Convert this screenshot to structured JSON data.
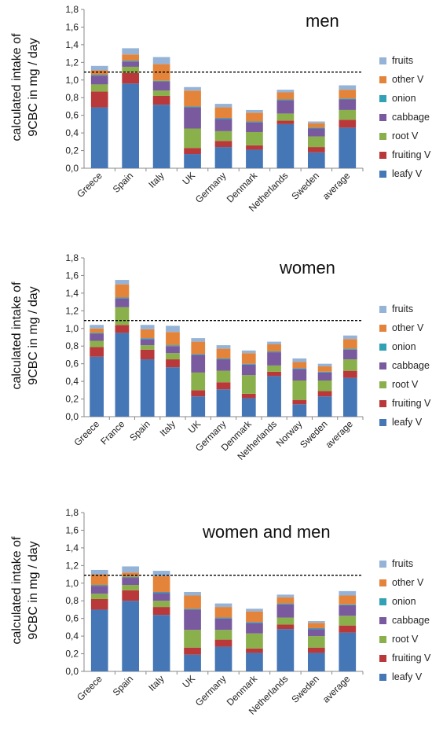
{
  "legend": [
    {
      "name": "fruits",
      "color": "#95b3d7"
    },
    {
      "name": "other V",
      "color": "#e3843a"
    },
    {
      "name": "onion",
      "color": "#31a1b5"
    },
    {
      "name": "cabbage",
      "color": "#7a5a9e"
    },
    {
      "name": "root V",
      "color": "#8ab04b"
    },
    {
      "name": "fruiting V",
      "color": "#b9393a"
    },
    {
      "name": "leafy V",
      "color": "#4576b5"
    }
  ],
  "chart_data": [
    {
      "type": "bar",
      "stacked": true,
      "title": "men",
      "ylabel": [
        "calculated intake of",
        "9CBC  in mg / day"
      ],
      "ylim": [
        0,
        1.8
      ],
      "yticks": [
        "0,0",
        "0,2",
        "0,4",
        "0,6",
        "0,8",
        "1,0",
        "1,2",
        "1,4",
        "1,6",
        "1,8"
      ],
      "reference_line": 1.09,
      "categories": [
        "Greece",
        "Spain",
        "Italy",
        "UK",
        "Germany",
        "Denmark",
        "Netherlands",
        "Sweden",
        "average"
      ],
      "series": [
        {
          "name": "leafy V",
          "values": [
            0.69,
            0.96,
            0.72,
            0.16,
            0.24,
            0.21,
            0.5,
            0.18,
            0.46
          ]
        },
        {
          "name": "fruiting V",
          "values": [
            0.18,
            0.12,
            0.1,
            0.07,
            0.07,
            0.05,
            0.04,
            0.06,
            0.09
          ]
        },
        {
          "name": "root V",
          "values": [
            0.08,
            0.07,
            0.06,
            0.22,
            0.11,
            0.15,
            0.08,
            0.12,
            0.11
          ]
        },
        {
          "name": "cabbage",
          "values": [
            0.1,
            0.06,
            0.1,
            0.24,
            0.14,
            0.11,
            0.15,
            0.09,
            0.12
          ]
        },
        {
          "name": "onion",
          "values": [
            0.01,
            0.01,
            0.01,
            0.01,
            0.01,
            0.01,
            0.01,
            0.01,
            0.01
          ]
        },
        {
          "name": "other V",
          "values": [
            0.05,
            0.07,
            0.19,
            0.18,
            0.12,
            0.1,
            0.08,
            0.05,
            0.1
          ]
        },
        {
          "name": "fruits",
          "values": [
            0.05,
            0.07,
            0.08,
            0.04,
            0.04,
            0.03,
            0.03,
            0.02,
            0.05
          ]
        }
      ]
    },
    {
      "type": "bar",
      "stacked": true,
      "title": "women",
      "ylabel": [
        "calculated intake of",
        "9CBC  in mg / day"
      ],
      "ylim": [
        0,
        1.8
      ],
      "yticks": [
        "0,0",
        "0,2",
        "0,4",
        "0,6",
        "0,8",
        "1,0",
        "1,2",
        "1,4",
        "1,6",
        "1,8"
      ],
      "reference_line": 1.09,
      "categories": [
        "Greece",
        "France",
        "Spain",
        "Italy",
        "UK",
        "Germany",
        "Denmark",
        "Netherlands",
        "Norway",
        "Sweden",
        "average"
      ],
      "series": [
        {
          "name": "leafy V",
          "values": [
            0.68,
            0.95,
            0.65,
            0.56,
            0.23,
            0.31,
            0.21,
            0.46,
            0.14,
            0.23,
            0.44
          ]
        },
        {
          "name": "fruiting V",
          "values": [
            0.11,
            0.09,
            0.11,
            0.09,
            0.07,
            0.08,
            0.05,
            0.05,
            0.05,
            0.06,
            0.08
          ]
        },
        {
          "name": "root V",
          "values": [
            0.07,
            0.2,
            0.05,
            0.07,
            0.2,
            0.13,
            0.21,
            0.07,
            0.22,
            0.12,
            0.13
          ]
        },
        {
          "name": "cabbage",
          "values": [
            0.08,
            0.1,
            0.07,
            0.08,
            0.2,
            0.13,
            0.12,
            0.15,
            0.13,
            0.09,
            0.11
          ]
        },
        {
          "name": "onion",
          "values": [
            0.01,
            0.01,
            0.01,
            0.01,
            0.01,
            0.01,
            0.01,
            0.01,
            0.01,
            0.01,
            0.01
          ]
        },
        {
          "name": "other V",
          "values": [
            0.05,
            0.15,
            0.1,
            0.15,
            0.14,
            0.11,
            0.12,
            0.08,
            0.07,
            0.06,
            0.11
          ]
        },
        {
          "name": "fruits",
          "values": [
            0.04,
            0.05,
            0.05,
            0.07,
            0.04,
            0.04,
            0.03,
            0.03,
            0.04,
            0.03,
            0.04
          ]
        }
      ]
    },
    {
      "type": "bar",
      "stacked": true,
      "title": "women and men",
      "ylabel": [
        "calculated intake of",
        "9CBC  in mg / day"
      ],
      "ylim": [
        0,
        1.8
      ],
      "yticks": [
        "0,0",
        "0,2",
        "0,4",
        "0,6",
        "0,8",
        "1,0",
        "1,2",
        "1,4",
        "1,6",
        "1,8"
      ],
      "reference_line": 1.09,
      "categories": [
        "Greece",
        "Spain",
        "Italy",
        "UK",
        "Germany",
        "Denmark",
        "Netherlands",
        "Sweden",
        "average"
      ],
      "series": [
        {
          "name": "leafy V",
          "values": [
            0.7,
            0.8,
            0.64,
            0.19,
            0.28,
            0.21,
            0.48,
            0.21,
            0.44
          ]
        },
        {
          "name": "fruiting V",
          "values": [
            0.12,
            0.12,
            0.09,
            0.08,
            0.08,
            0.05,
            0.05,
            0.06,
            0.08
          ]
        },
        {
          "name": "root V",
          "values": [
            0.06,
            0.06,
            0.07,
            0.2,
            0.11,
            0.17,
            0.08,
            0.13,
            0.11
          ]
        },
        {
          "name": "cabbage",
          "values": [
            0.09,
            0.08,
            0.09,
            0.23,
            0.13,
            0.12,
            0.15,
            0.08,
            0.12
          ]
        },
        {
          "name": "onion",
          "values": [
            0.01,
            0.01,
            0.01,
            0.01,
            0.01,
            0.01,
            0.01,
            0.01,
            0.01
          ]
        },
        {
          "name": "other V",
          "values": [
            0.12,
            0.05,
            0.18,
            0.15,
            0.12,
            0.12,
            0.07,
            0.06,
            0.1
          ]
        },
        {
          "name": "fruits",
          "values": [
            0.05,
            0.07,
            0.06,
            0.04,
            0.04,
            0.03,
            0.03,
            0.02,
            0.05
          ]
        }
      ]
    }
  ]
}
